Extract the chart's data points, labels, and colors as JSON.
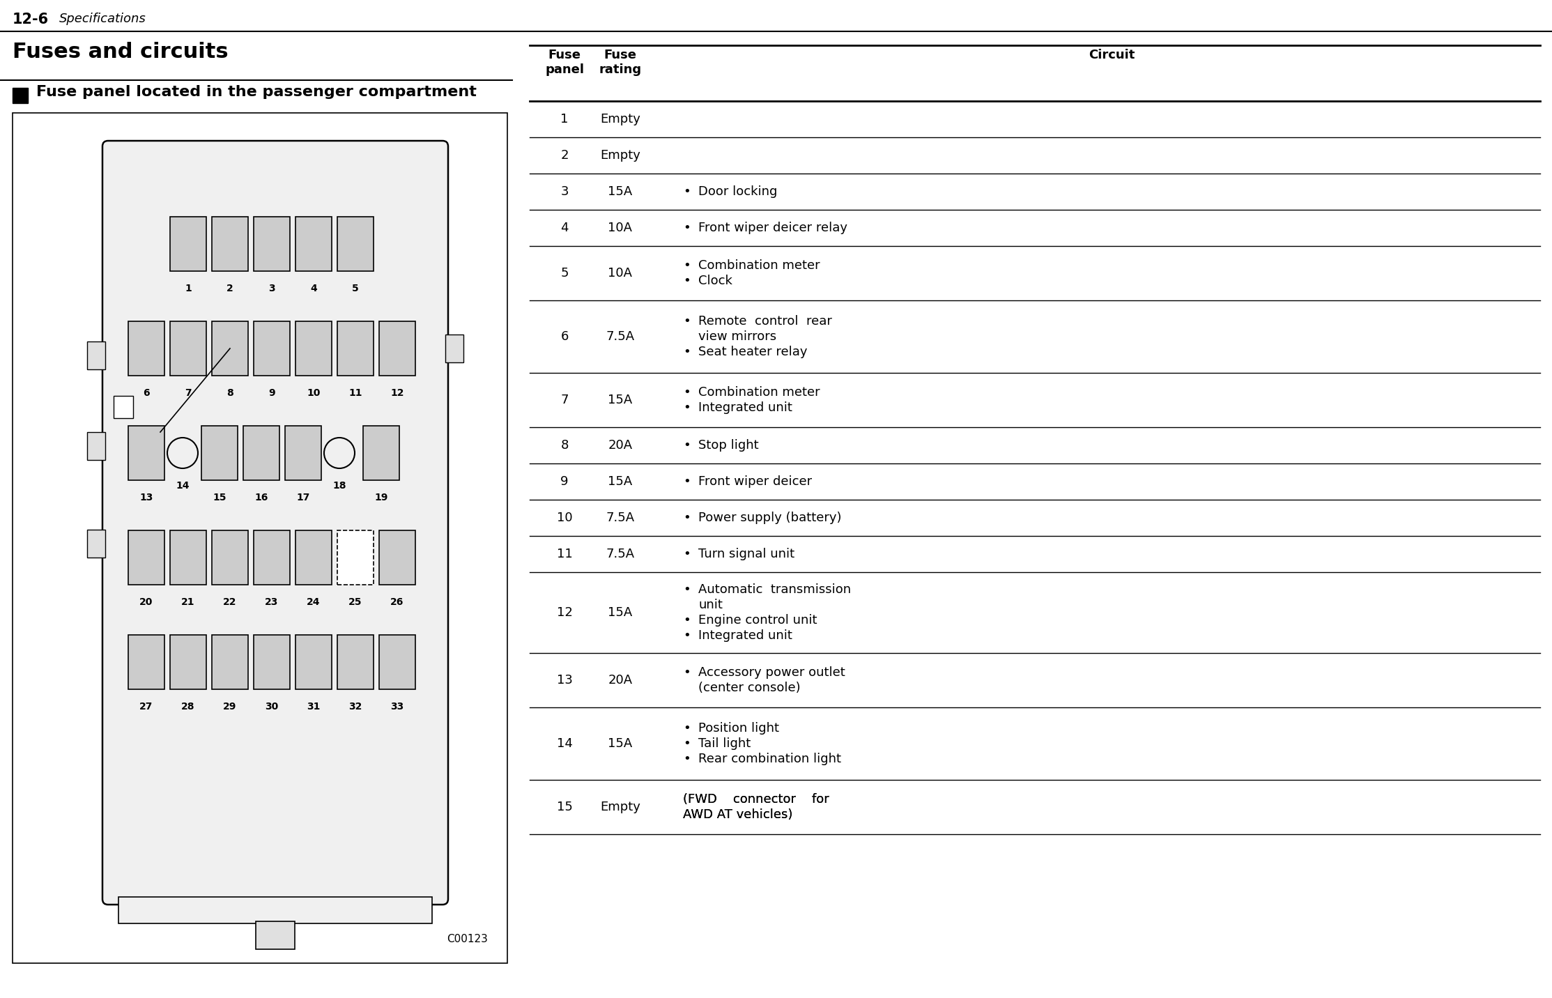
{
  "page_header": "12-6",
  "page_header_italic": "Specifications",
  "title": "Fuses and circuits",
  "subtitle": "Fuse panel located in the passenger compartment",
  "diagram_code": "C00123",
  "table_data": [
    [
      "1",
      "Empty",
      ""
    ],
    [
      "2",
      "Empty",
      ""
    ],
    [
      "3",
      "15A",
      "Door locking"
    ],
    [
      "4",
      "10A",
      "Front wiper deicer relay"
    ],
    [
      "5",
      "10A",
      "Combination meter\nClock"
    ],
    [
      "6",
      "7.5A",
      "Remote  control  rear\nview mirrors\nSeat heater relay"
    ],
    [
      "7",
      "15A",
      "Combination meter\nIntegrated unit"
    ],
    [
      "8",
      "20A",
      "Stop light"
    ],
    [
      "9",
      "15A",
      "Front wiper deicer"
    ],
    [
      "10",
      "7.5A",
      "Power supply (battery)"
    ],
    [
      "11",
      "7.5A",
      "Turn signal unit"
    ],
    [
      "12",
      "15A",
      "Automatic  transmission\nunit\nEngine control unit\nIntegrated unit"
    ],
    [
      "13",
      "20A",
      "Accessory power outlet\n(center console)"
    ],
    [
      "14",
      "15A",
      "Position light\nTail light\nRear combination light"
    ],
    [
      "15",
      "Empty",
      "(FWD    connector    for\nAWD AT vehicles)"
    ]
  ],
  "bg_color": "#ffffff",
  "fuse_fill": "#c8c8c8",
  "fuse_outline": "#000000"
}
